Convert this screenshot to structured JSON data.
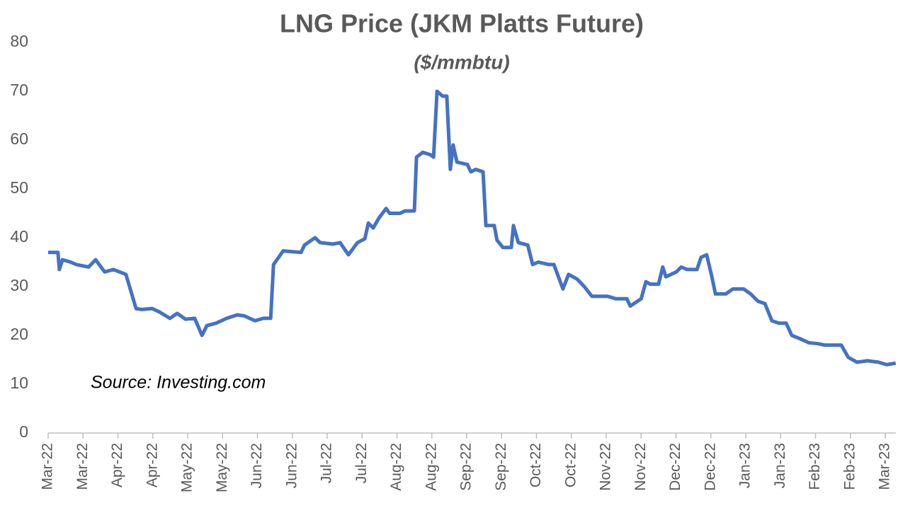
{
  "chart_data": {
    "type": "line",
    "title": "LNG Price (JKM Platts Future)",
    "subtitle": "($/mmbtu)",
    "annotation": "Source: Investing.com",
    "xlim": [
      0,
      24.3
    ],
    "xticks": [
      {
        "value": 0,
        "label": "Mar-22"
      },
      {
        "value": 1,
        "label": "Mar-22"
      },
      {
        "value": 2,
        "label": "Apr-22"
      },
      {
        "value": 3,
        "label": "Apr-22"
      },
      {
        "value": 4,
        "label": "May-22"
      },
      {
        "value": 5,
        "label": "May-22"
      },
      {
        "value": 6,
        "label": "Jun-22"
      },
      {
        "value": 7,
        "label": "Jun-22"
      },
      {
        "value": 8,
        "label": "Jul-22"
      },
      {
        "value": 9,
        "label": "Jul-22"
      },
      {
        "value": 10,
        "label": "Aug-22"
      },
      {
        "value": 11,
        "label": "Aug-22"
      },
      {
        "value": 12,
        "label": "Sep-22"
      },
      {
        "value": 13,
        "label": "Sep-22"
      },
      {
        "value": 14,
        "label": "Oct-22"
      },
      {
        "value": 15,
        "label": "Oct-22"
      },
      {
        "value": 16,
        "label": "Nov-22"
      },
      {
        "value": 17,
        "label": "Nov-22"
      },
      {
        "value": 18,
        "label": "Dec-22"
      },
      {
        "value": 19,
        "label": "Dec-22"
      },
      {
        "value": 20,
        "label": "Jan-23"
      },
      {
        "value": 21,
        "label": "Jan-23"
      },
      {
        "value": 22,
        "label": "Feb-23"
      },
      {
        "value": 23,
        "label": "Feb-23"
      },
      {
        "value": 24,
        "label": "Mar-23"
      }
    ],
    "ylim": [
      0,
      80
    ],
    "yticks": [
      0,
      10,
      20,
      30,
      40,
      50,
      60,
      70,
      80
    ],
    "grid": false,
    "series": [
      {
        "name": "JKM",
        "color": "#4472c4",
        "x": [
          0,
          0.28,
          0.32,
          0.41,
          0.65,
          0.81,
          1.16,
          1.36,
          1.62,
          1.87,
          2.23,
          2.52,
          2.68,
          2.98,
          3.19,
          3.49,
          3.7,
          3.94,
          4.2,
          4.41,
          4.55,
          4.81,
          5.12,
          5.42,
          5.62,
          5.93,
          6.17,
          6.38,
          6.46,
          6.74,
          7.25,
          7.35,
          7.65,
          7.8,
          8.16,
          8.37,
          8.61,
          8.87,
          9.08,
          9.18,
          9.32,
          9.48,
          9.69,
          9.79,
          10.09,
          10.23,
          10.5,
          10.56,
          10.74,
          10.96,
          11.05,
          11.15,
          11.31,
          11.43,
          11.53,
          11.61,
          11.72,
          12.02,
          12.12,
          12.26,
          12.47,
          12.55,
          12.79,
          12.87,
          13.04,
          13.28,
          13.34,
          13.48,
          13.75,
          13.89,
          14.05,
          14.36,
          14.5,
          14.76,
          14.92,
          15.17,
          15.37,
          15.59,
          15.84,
          16.04,
          16.28,
          16.59,
          16.69,
          17,
          17.14,
          17.26,
          17.5,
          17.62,
          17.71,
          18.01,
          18.15,
          18.32,
          18.6,
          18.72,
          18.88,
          19.03,
          19.13,
          19.43,
          19.63,
          19.94,
          20.14,
          20.35,
          20.55,
          20.75,
          20.95,
          21.16,
          21.32,
          21.56,
          21.81,
          22.07,
          22.27,
          22.74,
          22.94,
          23.19,
          23.49,
          23.8,
          24.04,
          24.3
        ],
        "values": [
          37,
          37,
          33.5,
          35.5,
          35,
          34.5,
          34,
          35.5,
          33,
          33.5,
          32.5,
          25.5,
          25.3,
          25.5,
          24.8,
          23.5,
          24.5,
          23.3,
          23.5,
          20,
          22,
          22.5,
          23.5,
          24.2,
          24,
          23,
          23.5,
          23.5,
          34.5,
          37.3,
          37,
          38.5,
          40,
          39,
          38.7,
          39,
          36.5,
          39,
          39.8,
          43,
          42,
          44,
          46,
          45,
          45,
          45.5,
          45.5,
          56.5,
          57.5,
          57,
          56.5,
          70,
          69,
          69,
          54,
          59,
          55.5,
          55,
          53.5,
          54,
          53.5,
          42.5,
          42.5,
          39.5,
          38,
          38,
          42.5,
          39,
          38.5,
          34.5,
          35,
          34.5,
          34.5,
          29.5,
          32.5,
          31.5,
          30,
          28,
          28,
          28,
          27.5,
          27.5,
          26,
          27.5,
          31,
          30.5,
          30.5,
          34,
          32,
          33,
          34,
          33.5,
          33.5,
          36,
          36.5,
          32,
          28.5,
          28.5,
          29.5,
          29.5,
          28.5,
          27,
          26.5,
          23,
          22.5,
          22.5,
          20,
          19.3,
          18.5,
          18.3,
          18,
          18,
          15.5,
          14.5,
          14.8,
          14.5,
          14,
          14.3
        ]
      }
    ]
  }
}
